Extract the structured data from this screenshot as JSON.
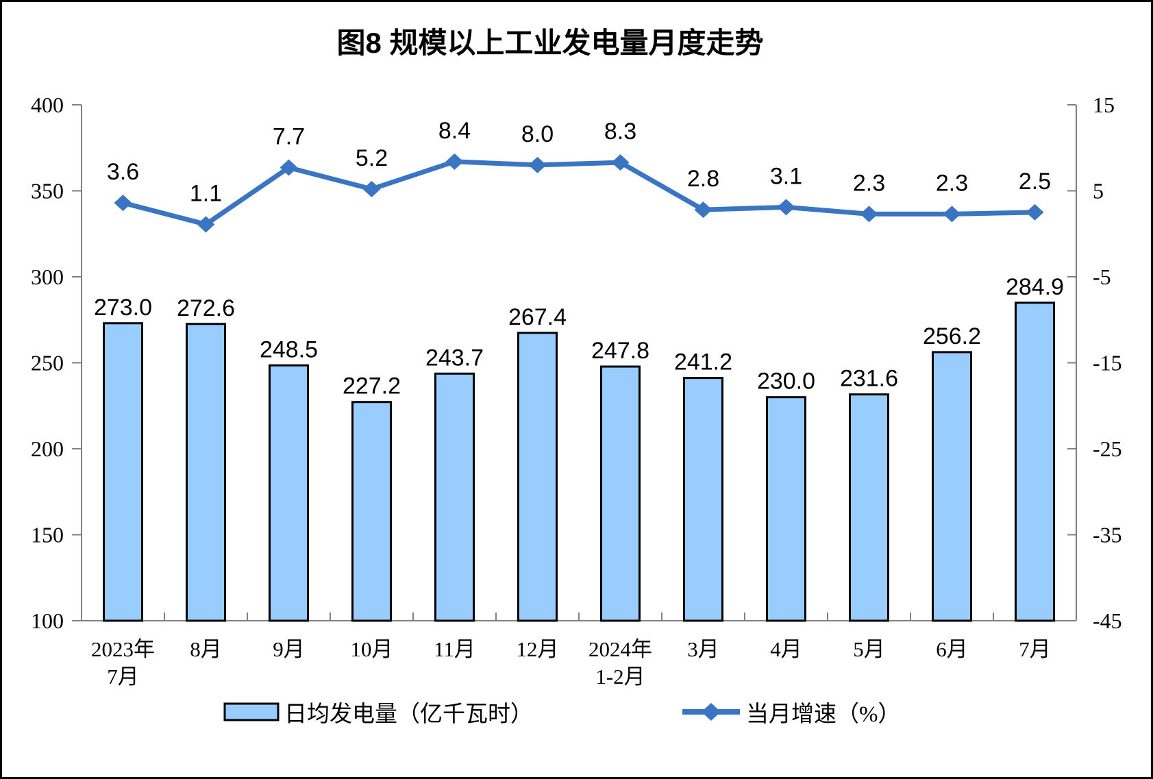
{
  "title": "图8  规模以上工业发电量月度走势",
  "colors": {
    "background": "#FFFFFF",
    "frame": "#000000",
    "bar_fill": "#99CCFF",
    "bar_stroke": "#000000",
    "line": "#3A75C4",
    "axis": "#808080",
    "text": "#000000"
  },
  "legend": {
    "bar_label": "日均发电量（亿千瓦时）",
    "line_label": "当月增速（%）"
  },
  "chart_data": {
    "type": "bar",
    "combo": "bar+line dual-axis",
    "title": "图8  规模以上工业发电量月度走势",
    "categories": [
      "2023年\n7月",
      "8月",
      "9月",
      "10月",
      "11月",
      "12月",
      "2024年\n1-2月",
      "3月",
      "4月",
      "5月",
      "6月",
      "7月"
    ],
    "series": [
      {
        "name": "日均发电量（亿千瓦时）",
        "type": "bar",
        "axis": "left",
        "values": [
          273.0,
          272.6,
          248.5,
          227.2,
          243.7,
          267.4,
          247.8,
          241.2,
          230.0,
          231.6,
          256.2,
          284.9
        ]
      },
      {
        "name": "当月增速（%）",
        "type": "line",
        "axis": "right",
        "values": [
          3.6,
          1.1,
          7.7,
          5.2,
          8.4,
          8.0,
          8.3,
          2.8,
          3.1,
          2.3,
          2.3,
          2.5
        ]
      }
    ],
    "left_axis": {
      "min": 100,
      "max": 400,
      "ticks": [
        400,
        350,
        300,
        250,
        200,
        150,
        100
      ]
    },
    "right_axis": {
      "min": -45,
      "max": 15,
      "ticks": [
        15,
        5,
        -5,
        -15,
        -25,
        -35,
        -45
      ]
    },
    "grid": false,
    "legend_position": "bottom",
    "data_labels": "one-decimal"
  }
}
